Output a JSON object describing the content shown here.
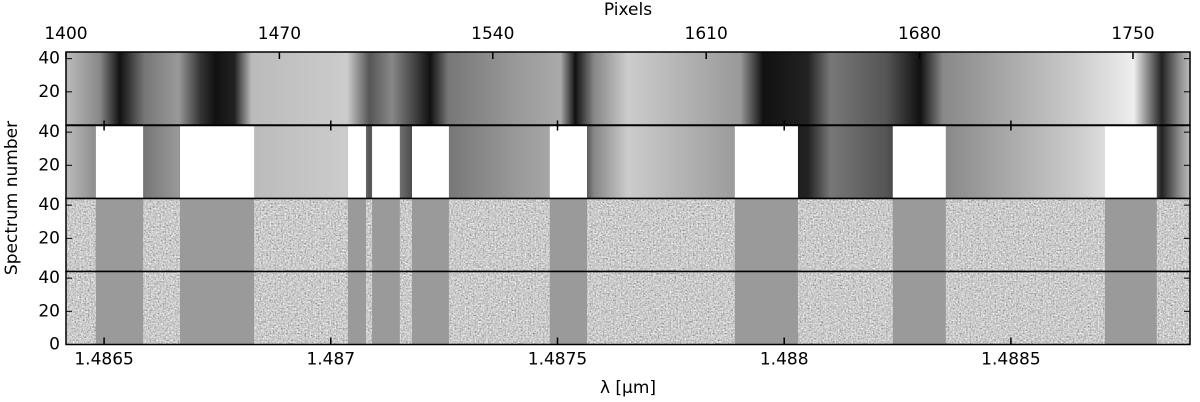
{
  "chart_data": {
    "type": "image",
    "x_label": "λ [μm]",
    "x2_label": "Pixels",
    "y_label": "Spectrum number",
    "xlim": [
      1.486416,
      1.488895
    ],
    "xticks": [
      1.4865,
      1.487,
      1.4875,
      1.488,
      1.4885
    ],
    "x2lim": [
      1400,
      1768.7
    ],
    "x2ticks": [
      1400,
      1470,
      1540,
      1610,
      1680,
      1750
    ],
    "masks": [
      [
        1409.8,
        1425.3
      ],
      [
        1437.4,
        1461.7
      ],
      [
        1492.5,
        1498.4
      ],
      [
        1500.4,
        1509.5
      ],
      [
        1513.5,
        1525.6
      ],
      [
        1558.7,
        1570.9
      ],
      [
        1619.4,
        1640.1
      ],
      [
        1671.2,
        1688.6
      ],
      [
        1740.8,
        1757.8
      ]
    ],
    "panels": [
      {
        "ylim": [
          0,
          44
        ],
        "yticks": [
          20,
          40
        ]
      },
      {
        "ylim": [
          0,
          44
        ],
        "yticks": [
          20,
          40
        ],
        "mask_color": "#ffffff"
      },
      {
        "ylim": [
          0,
          44
        ],
        "yticks": [
          20,
          40
        ],
        "mask_color": "#9a9a9a"
      },
      {
        "ylim": [
          0,
          44
        ],
        "yticks": [
          0,
          20,
          40
        ],
        "mask_color": "#9a9a9a"
      }
    ]
  }
}
